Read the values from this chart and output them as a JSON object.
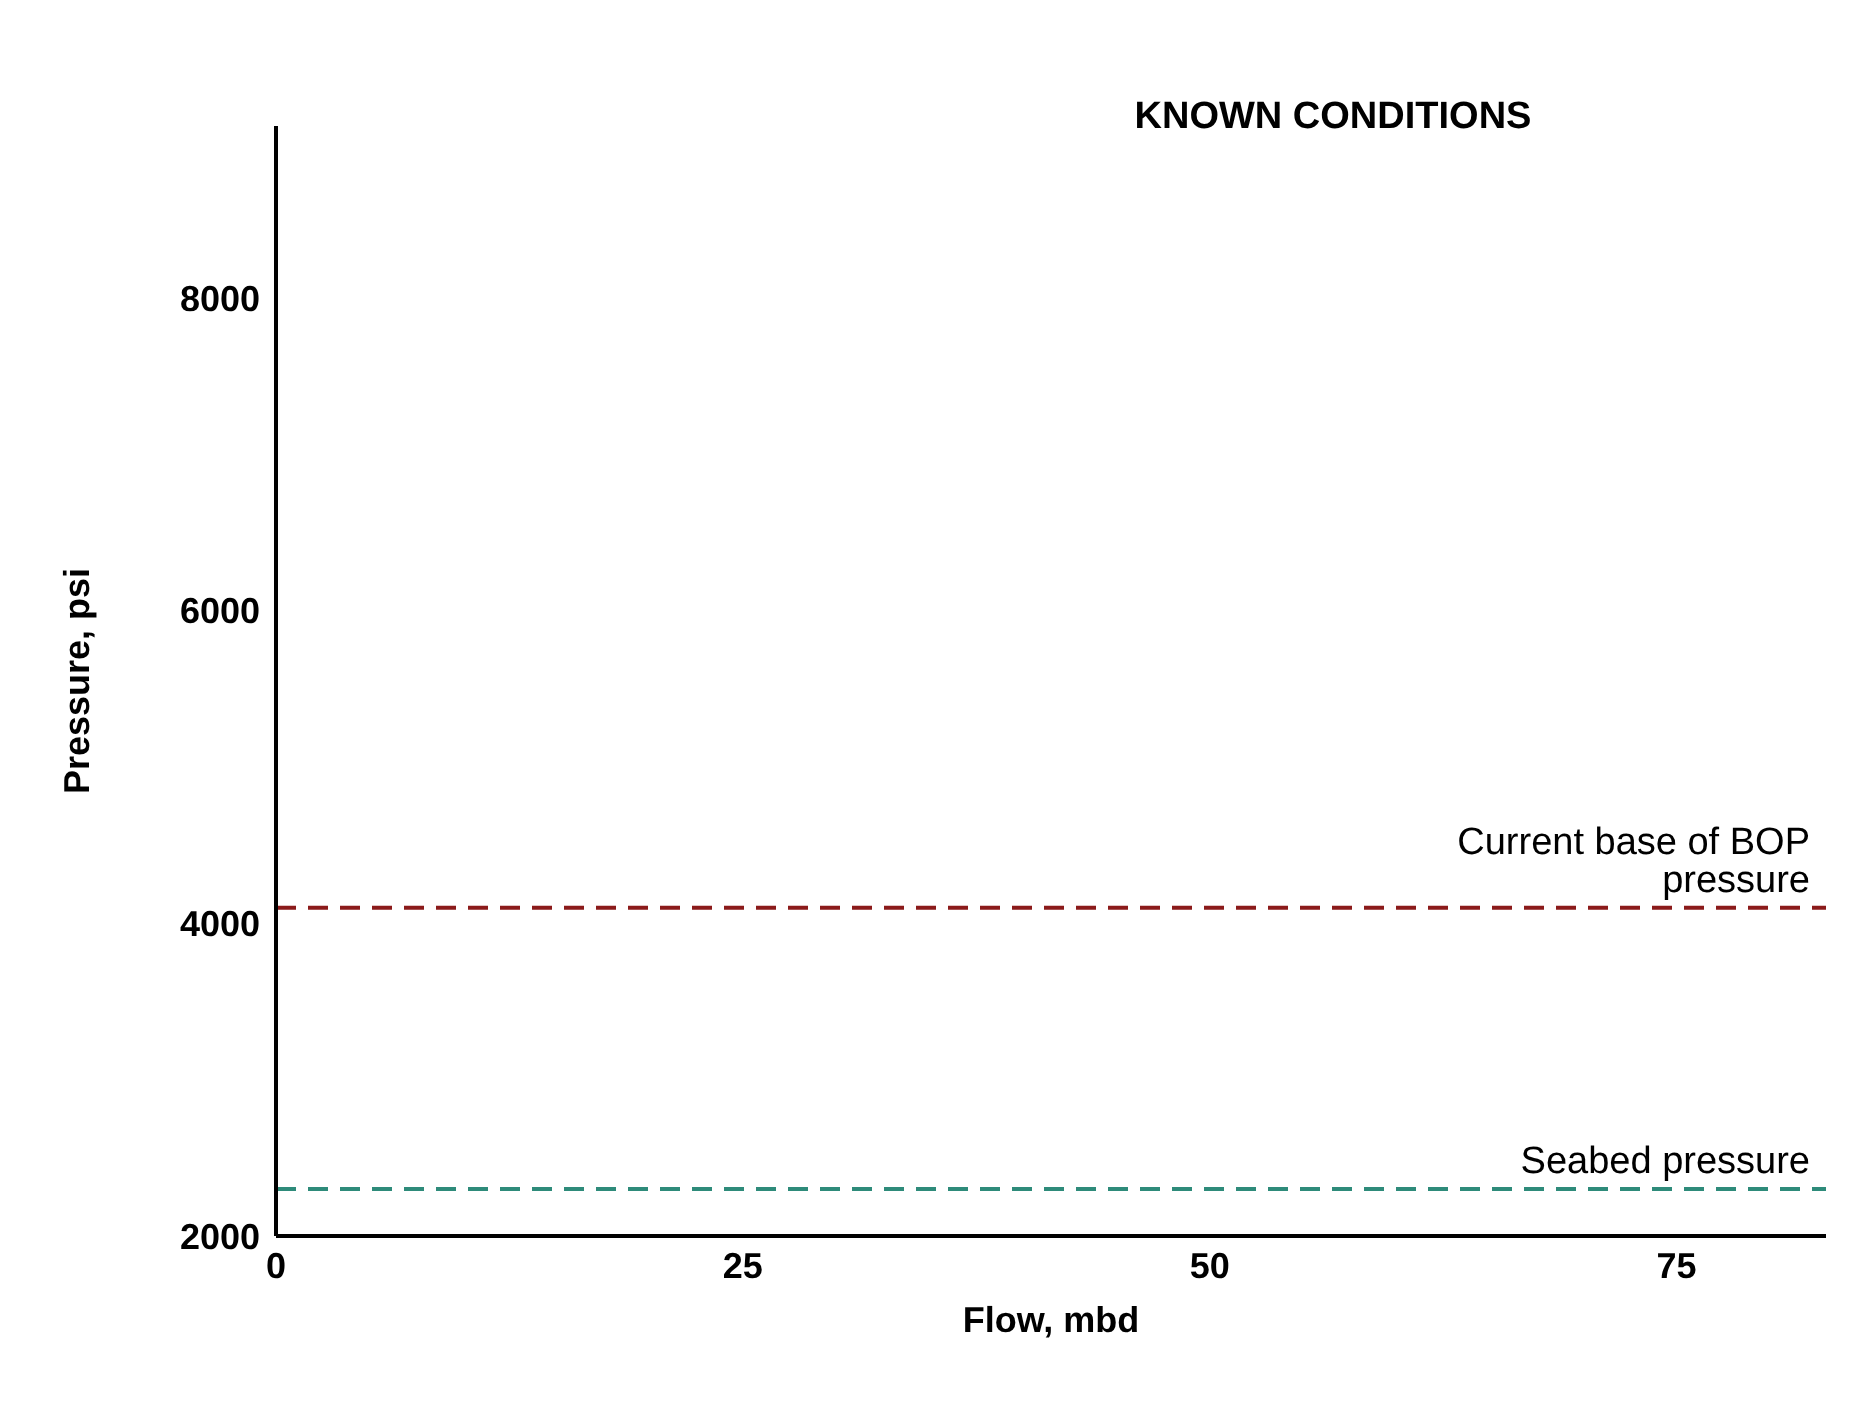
{
  "chart_data": {
    "type": "line",
    "title": "KNOWN CONDITIONS",
    "xlabel": "Flow, mbd",
    "ylabel": "Pressure, psi",
    "xlim": [
      0,
      83
    ],
    "xticks": [
      0,
      25,
      50,
      75
    ],
    "ylim": [
      2000,
      9100
    ],
    "yticks": [
      2000,
      4000,
      6000,
      8000
    ],
    "grid": false,
    "ref_lines": [
      {
        "axis": "y",
        "value": 4100,
        "label": "Current base of BOP pressure",
        "color": "#8b1a1a",
        "line_style": "dashed"
      },
      {
        "axis": "y",
        "value": 2300,
        "label": "Seabed pressure",
        "color": "#2e8b7a",
        "line_style": "dashed"
      }
    ]
  }
}
